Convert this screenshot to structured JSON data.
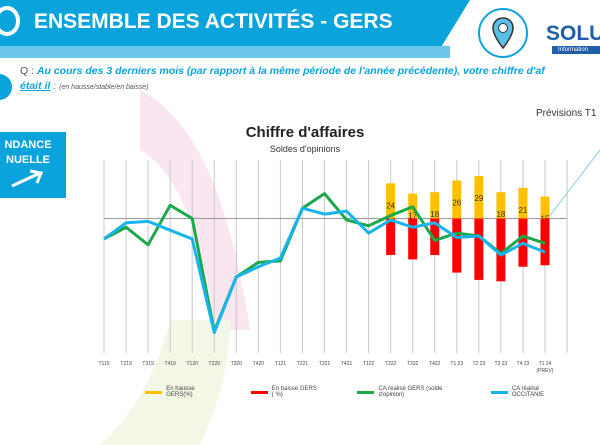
{
  "header": {
    "title": "ENSEMBLE DES ACTIVITÉS  - GERS",
    "brand": "SOLU",
    "brand_sub": "Information"
  },
  "question": {
    "prefix": "Q : ",
    "text": "Au cours des 3 derniers mois (par rapport à la même période de l'année précédente),  votre chiffre d'af",
    "line2": "était il",
    "colon": " : ",
    "hint": "(en hausse/stable/en baisse)"
  },
  "side_box": {
    "line1": "NDANCE",
    "line2": "NUELLE",
    "icon": "arrow-up-right-icon"
  },
  "forecast_label": "Prévisions T1",
  "chart_data": {
    "type": "bar+line",
    "title": "Chiffre d'affaires",
    "subtitle": "Soldes d'opinions",
    "categories": [
      "T119",
      "T219",
      "T319",
      "T419",
      "T120",
      "T220",
      "T320",
      "T420",
      "T121",
      "T221",
      "T321",
      "T421",
      "T122",
      "T222",
      "T322",
      "T422",
      "T1 23",
      "T2 23",
      "T3 23",
      "T4 23",
      "T1 24"
    ],
    "last_category_note": "(PREV)",
    "ylim": [
      -92,
      40
    ],
    "series": [
      {
        "name": "En hausse GERS(%)",
        "type": "bar",
        "color": "#ffc000",
        "values": [
          null,
          null,
          null,
          null,
          null,
          null,
          null,
          null,
          null,
          null,
          null,
          null,
          null,
          24,
          17,
          18,
          26,
          29,
          18,
          21,
          15
        ],
        "labels": true
      },
      {
        "name": "En baisse GERS ( %)",
        "type": "bar",
        "color": "#ff0000",
        "values": [
          null,
          null,
          null,
          null,
          null,
          null,
          null,
          null,
          null,
          null,
          null,
          null,
          null,
          -25,
          -28,
          -25,
          -37,
          -42,
          -43,
          -33,
          -32
        ]
      },
      {
        "name": "CA réalisé GERS (solde d'opinion)",
        "type": "line",
        "color": "#1aa84a",
        "values": [
          -14,
          -6,
          -18,
          9,
          0,
          -77,
          -40,
          -30,
          -29,
          7,
          17,
          -1,
          -5,
          2,
          8,
          -15,
          -10,
          -12,
          -24,
          -12,
          -17
        ]
      },
      {
        "name": "CA réalisé OCCITANIE",
        "type": "line",
        "color": "#18b4ee",
        "values": [
          -14,
          -3,
          -2,
          -8,
          -14,
          -78,
          -40,
          -33,
          -27,
          7,
          3,
          5,
          -10,
          -1,
          -6,
          -3,
          -13,
          -12,
          -25,
          -17,
          -23
        ]
      }
    ]
  }
}
